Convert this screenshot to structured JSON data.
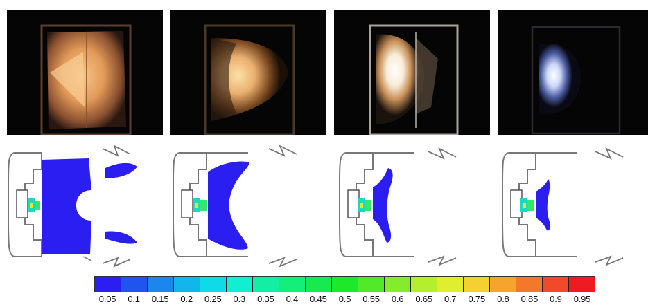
{
  "figure": {
    "panels": [
      {
        "label": ""
      },
      {
        "label": ""
      },
      {
        "label": ""
      },
      {
        "label": ""
      }
    ],
    "colorbar": {
      "ticks": [
        "0.05",
        "0.1",
        "0.15",
        "0.2",
        "0.25",
        "0.3",
        "0.35",
        "0.4",
        "0.45",
        "0.5",
        "0.55",
        "0.6",
        "0.65",
        "0.7",
        "0.75",
        "0.8",
        "0.85",
        "0.9",
        "0.95"
      ],
      "colors": [
        "#2a1ff0",
        "#1f55ee",
        "#1a86ee",
        "#12b5ec",
        "#10d9ea",
        "#12eed0",
        "#14eea5",
        "#14ee7a",
        "#16ea4c",
        "#1ee82a",
        "#52ea28",
        "#84ec2a",
        "#b4ee2c",
        "#e0ee30",
        "#f6d030",
        "#f6a42e",
        "#f4782c",
        "#f04a28",
        "#ee1c20"
      ]
    },
    "flame_colors": [
      "#f2a860",
      "#f6d08c",
      "#ffffff",
      "#c8d8ff"
    ]
  }
}
